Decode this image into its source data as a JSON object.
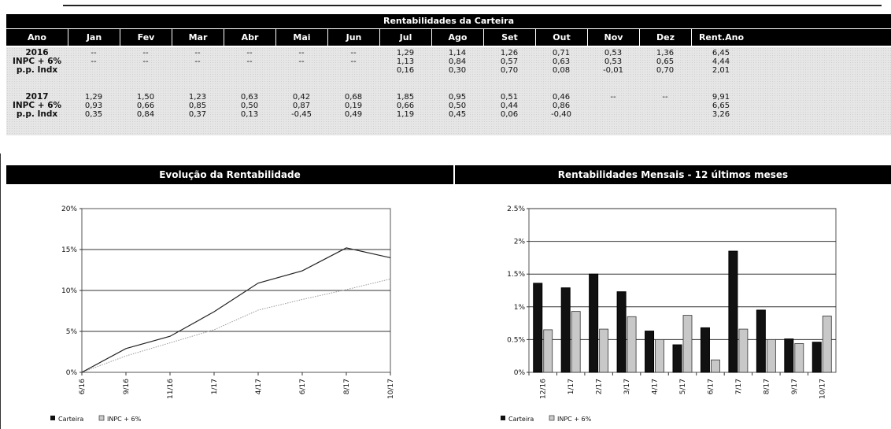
{
  "table": {
    "title": "Rentabilidades da Carteira",
    "headers": [
      "Ano",
      "Jan",
      "Fev",
      "Mar",
      "Abr",
      "Mai",
      "Jun",
      "Jul",
      "Ago",
      "Set",
      "Out",
      "Nov",
      "Dez",
      "Rent.Ano"
    ],
    "years": [
      {
        "labels": [
          "2016",
          "INPC + 6%",
          "p.p. Indx"
        ],
        "months": [
          [
            "--",
            "--",
            ""
          ],
          [
            "--",
            "--",
            ""
          ],
          [
            "--",
            "--",
            ""
          ],
          [
            "--",
            "--",
            ""
          ],
          [
            "--",
            "--",
            ""
          ],
          [
            "--",
            "--",
            ""
          ],
          [
            "1,29",
            "1,13",
            "0,16"
          ],
          [
            "1,14",
            "0,84",
            "0,30"
          ],
          [
            "1,26",
            "0,57",
            "0,70"
          ],
          [
            "0,71",
            "0,63",
            "0,08"
          ],
          [
            "0,53",
            "0,53",
            "-0,01"
          ],
          [
            "1,36",
            "0,65",
            "0,70"
          ]
        ],
        "rent_ano": [
          "6,45",
          "4,44",
          "2,01"
        ]
      },
      {
        "labels": [
          "2017",
          "INPC + 6%",
          "p.p. Indx"
        ],
        "months": [
          [
            "1,29",
            "0,93",
            "0,35"
          ],
          [
            "1,50",
            "0,66",
            "0,84"
          ],
          [
            "1,23",
            "0,85",
            "0,37"
          ],
          [
            "0,63",
            "0,50",
            "0,13"
          ],
          [
            "0,42",
            "0,87",
            "-0,45"
          ],
          [
            "0,68",
            "0,19",
            "0,49"
          ],
          [
            "1,85",
            "0,66",
            "1,19"
          ],
          [
            "0,95",
            "0,50",
            "0,45"
          ],
          [
            "0,51",
            "0,44",
            "0,06"
          ],
          [
            "0,46",
            "0,86",
            "-0,40"
          ],
          [
            "--",
            "",
            ""
          ],
          [
            "--",
            "",
            ""
          ]
        ],
        "rent_ano": [
          "9,91",
          "6,65",
          "3,26"
        ]
      }
    ]
  },
  "charts": {
    "left_title": "Evolução da Rentabilidade",
    "right_title": "Rentabilidades Mensais - 12 últimos meses"
  },
  "colors": {
    "carteira": "#111111",
    "inpc": "#bdbdbd",
    "header_bg": "#000000",
    "table_bg": "#e6e6e6"
  },
  "chart_data": [
    {
      "type": "line",
      "title": "Evolução da Rentabilidade",
      "x": [
        "6/16",
        "9/16",
        "11/16",
        "1/17",
        "4/17",
        "6/17",
        "8/17",
        "10/17"
      ],
      "y_ticks": [
        "0%",
        "5%",
        "10%",
        "15%",
        "20%"
      ],
      "ylim": [
        0,
        20
      ],
      "series": [
        {
          "name": "Carteira",
          "values": [
            0,
            2.9,
            4.4,
            7.4,
            10.9,
            12.4,
            15.2,
            14.0
          ]
        },
        {
          "name": "INPC + 6%",
          "values": [
            0,
            2.0,
            3.6,
            5.2,
            7.6,
            8.9,
            10.1,
            11.4
          ]
        }
      ],
      "legend": "bottom-left",
      "grid": true
    },
    {
      "type": "bar",
      "title": "Rentabilidades Mensais - 12 últimos meses",
      "categories": [
        "12/16",
        "1/17",
        "2/17",
        "3/17",
        "4/17",
        "5/17",
        "6/17",
        "7/17",
        "8/17",
        "9/17",
        "10/17"
      ],
      "y_ticks": [
        "0%",
        "0.5%",
        "1%",
        "1.5%",
        "2%",
        "2.5%"
      ],
      "ylim": [
        0,
        2.5
      ],
      "series": [
        {
          "name": "Carteira",
          "values": [
            1.36,
            1.29,
            1.5,
            1.23,
            0.63,
            0.42,
            0.68,
            1.85,
            0.95,
            0.51,
            0.46
          ]
        },
        {
          "name": "INPC + 6%",
          "values": [
            0.65,
            0.93,
            0.66,
            0.85,
            0.5,
            0.87,
            0.19,
            0.66,
            0.5,
            0.44,
            0.86
          ]
        }
      ],
      "legend": "bottom-left",
      "grid": true
    }
  ]
}
